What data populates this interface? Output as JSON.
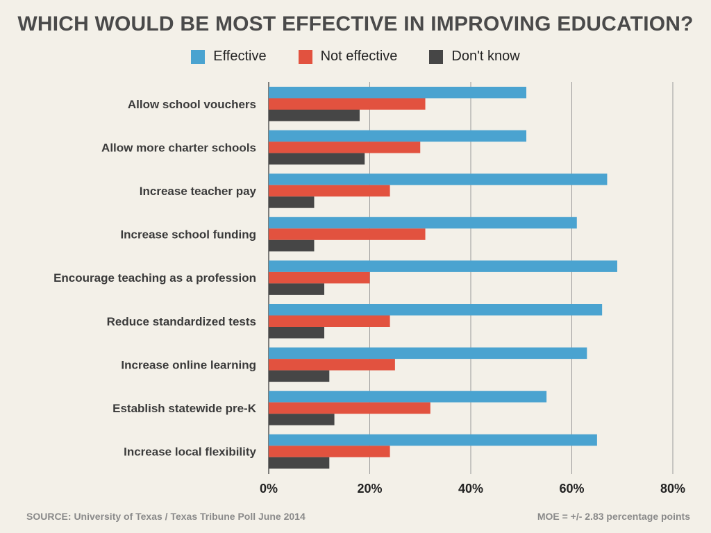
{
  "chart_data": {
    "type": "bar",
    "orientation": "horizontal",
    "title": "WHICH WOULD BE MOST EFFECTIVE IN IMPROVING EDUCATION?",
    "categories": [
      "Allow school vouchers",
      "Allow more charter schools",
      "Increase teacher pay",
      "Increase school funding",
      "Encourage teaching as a profession",
      "Reduce standardized tests",
      "Increase online learning",
      "Establish statewide pre-K",
      "Increase local flexibility"
    ],
    "series": [
      {
        "name": "Effective",
        "color": "#4aa3d0",
        "values": [
          51,
          51,
          67,
          61,
          69,
          66,
          63,
          55,
          65
        ]
      },
      {
        "name": "Not effective",
        "color": "#e2523f",
        "values": [
          31,
          30,
          24,
          31,
          20,
          24,
          25,
          32,
          24
        ]
      },
      {
        "name": "Don't know",
        "color": "#464646",
        "values": [
          18,
          19,
          9,
          9,
          11,
          11,
          12,
          13,
          12
        ]
      }
    ],
    "xlim": [
      0,
      80
    ],
    "xticks": [
      0,
      20,
      40,
      60,
      80
    ],
    "xtick_labels": [
      "0%",
      "20%",
      "40%",
      "60%",
      "80%"
    ],
    "grid": true,
    "legend_position": "top-center"
  },
  "footer": {
    "source": "SOURCE: University of Texas / Texas Tribune Poll June 2014",
    "moe": "MOE = +/- 2.83 percentage points"
  }
}
